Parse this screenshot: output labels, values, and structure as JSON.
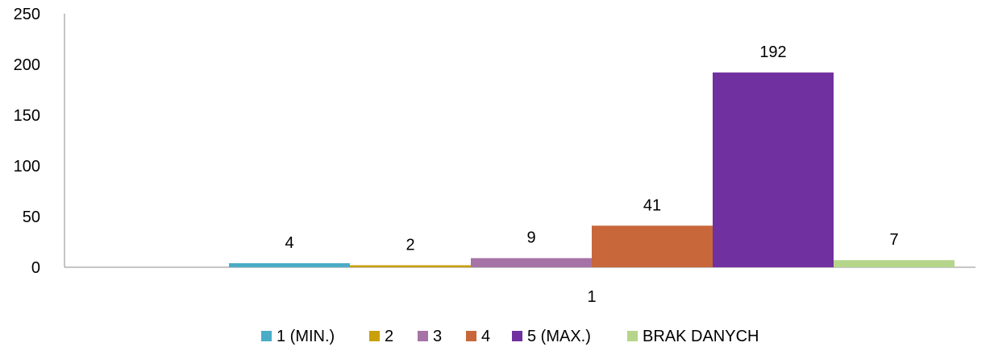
{
  "chart_data": {
    "type": "bar",
    "categories": [
      "1"
    ],
    "series": [
      {
        "name": "1 (MIN.)",
        "values": [
          4
        ],
        "color": "#4BACC6"
      },
      {
        "name": "2",
        "values": [
          2
        ],
        "color": "#C9A00B"
      },
      {
        "name": "3",
        "values": [
          9
        ],
        "color": "#A673A6"
      },
      {
        "name": "4",
        "values": [
          41
        ],
        "color": "#C8673A"
      },
      {
        "name": "5 (MAX.)",
        "values": [
          192
        ],
        "color": "#7030A0"
      },
      {
        "name": "BRAK DANYCH",
        "values": [
          7
        ],
        "color": "#B5D58A"
      }
    ],
    "yticks": [
      "0",
      "50",
      "100",
      "150",
      "200",
      "250"
    ],
    "ylim": [
      0,
      250
    ],
    "grid": false,
    "legend_position": "bottom",
    "data_labels": true,
    "title": "",
    "xlabel": "",
    "ylabel": ""
  }
}
